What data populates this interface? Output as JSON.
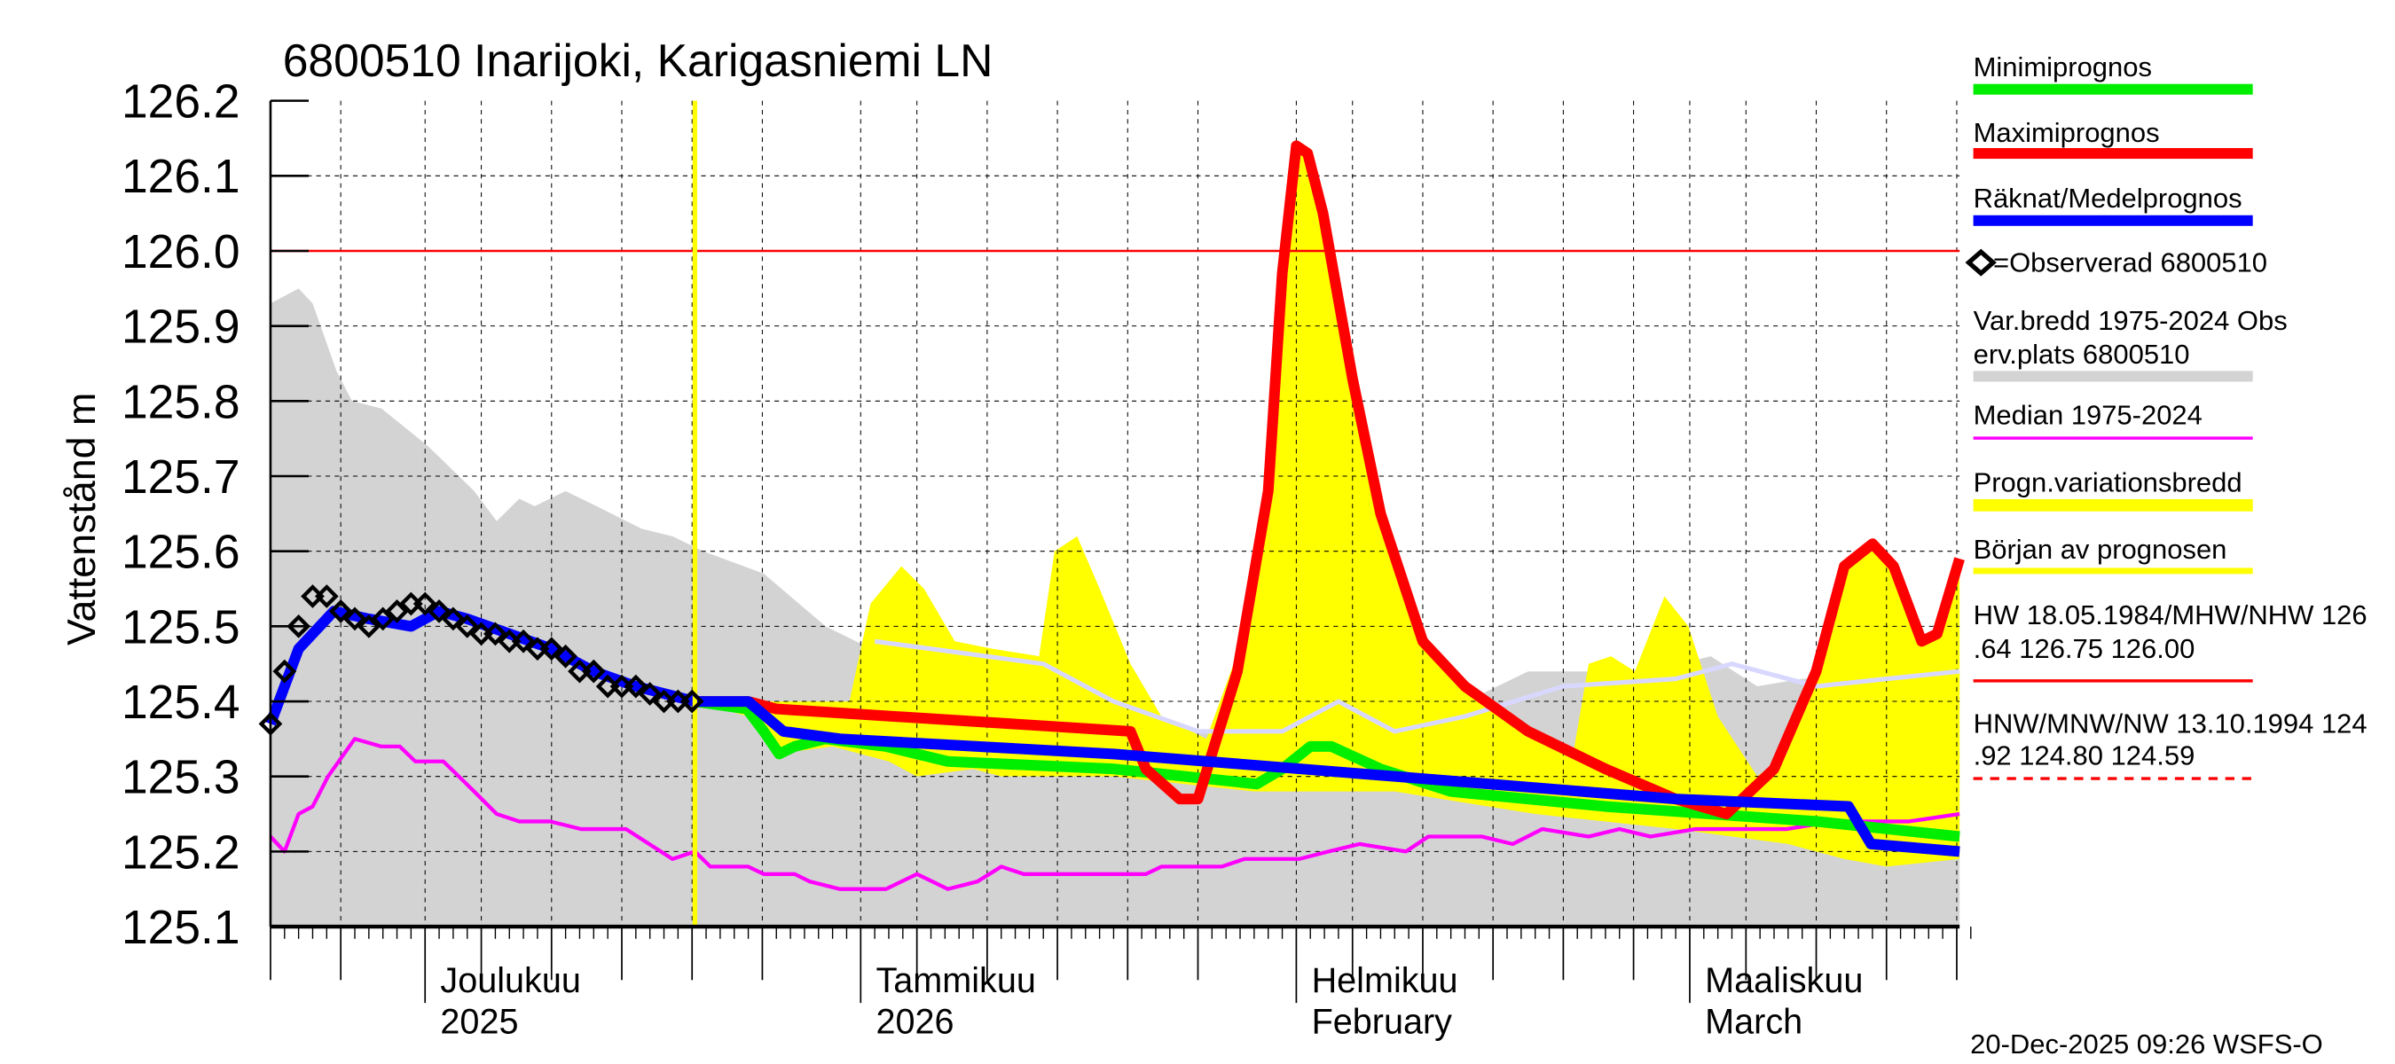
{
  "title": "6800510 Inarijoki, Karigasniemi LN",
  "footer": "20-Dec-2025 09:26 WSFS-O",
  "chart_data": {
    "type": "line",
    "title": "6800510 Inarijoki, Karigasniemi LN",
    "ylabel": "Vattenstånd m",
    "xlabel": "",
    "x_units": "days since 2025-11-20",
    "x_range": [
      0,
      120.2
    ],
    "ylim": [
      125.1,
      126.2
    ],
    "yticks": [
      "125.1",
      "125.2",
      "125.3",
      "125.4",
      "125.5",
      "125.6",
      "125.7",
      "125.8",
      "125.9",
      "126.0",
      "126.1",
      "126.2"
    ],
    "month_labels": [
      {
        "day": 11,
        "line1": "Joulukuu",
        "line2": "2025"
      },
      {
        "day": 42,
        "line1": "Tammikuu",
        "line2": "2026"
      },
      {
        "day": 73,
        "line1": "Helmikuu",
        "line2": "February"
      },
      {
        "day": 101,
        "line1": "Maaliskuu",
        "line2": "March"
      }
    ],
    "forecast_start_day": 30.2,
    "hw_reference_level": 126.0,
    "grid": true,
    "legend_position": "right",
    "var_band": {
      "name": "Var.bredd 1975-2024   Observ.plats 6800510",
      "color": "#d3d3d3",
      "upper": [
        [
          0,
          125.93
        ],
        [
          2,
          125.95
        ],
        [
          3,
          125.93
        ],
        [
          4.7,
          125.84
        ],
        [
          5.8,
          125.8
        ],
        [
          7.9,
          125.79
        ],
        [
          11.2,
          125.74
        ],
        [
          14.5,
          125.68
        ],
        [
          16.1,
          125.64
        ],
        [
          17.7,
          125.67
        ],
        [
          18.8,
          125.66
        ],
        [
          21,
          125.68
        ],
        [
          23.2,
          125.66
        ],
        [
          26.4,
          125.63
        ],
        [
          28.6,
          125.62
        ],
        [
          30.8,
          125.6
        ],
        [
          35.1,
          125.57
        ],
        [
          39.5,
          125.5
        ],
        [
          43.8,
          125.46
        ],
        [
          48.2,
          125.44
        ],
        [
          56.8,
          125.4
        ],
        [
          63.4,
          125.37
        ],
        [
          73.2,
          125.34
        ],
        [
          78.6,
          125.36
        ],
        [
          85.1,
          125.4
        ],
        [
          89.5,
          125.44
        ],
        [
          98.2,
          125.44
        ],
        [
          102.5,
          125.46
        ],
        [
          105.8,
          125.42
        ],
        [
          109,
          125.43
        ],
        [
          114.5,
          125.44
        ],
        [
          120.2,
          125.44
        ]
      ],
      "lower": 125.1
    },
    "forecast_band": {
      "name": "Progn.variationsbredd",
      "color": "#ffff00",
      "upper": [
        [
          30.2,
          125.4
        ],
        [
          41.2,
          125.4
        ],
        [
          42.7,
          125.53
        ],
        [
          44.9,
          125.58
        ],
        [
          46.5,
          125.55
        ],
        [
          48.7,
          125.48
        ],
        [
          51.4,
          125.47
        ],
        [
          54.7,
          125.46
        ],
        [
          55.8,
          125.6
        ],
        [
          57.4,
          125.62
        ],
        [
          59,
          125.55
        ],
        [
          61.2,
          125.45
        ],
        [
          63.4,
          125.38
        ],
        [
          66.6,
          125.35
        ],
        [
          69.9,
          125.52
        ],
        [
          71.5,
          125.85
        ],
        [
          73,
          126.14
        ],
        [
          73.8,
          126.13
        ],
        [
          74.9,
          126.05
        ],
        [
          77,
          125.83
        ],
        [
          79,
          125.65
        ],
        [
          82,
          125.48
        ],
        [
          85,
          125.42
        ],
        [
          89.5,
          125.36
        ],
        [
          92.7,
          125.33
        ],
        [
          93.8,
          125.45
        ],
        [
          95.4,
          125.46
        ],
        [
          97.1,
          125.44
        ],
        [
          99.2,
          125.54
        ],
        [
          100.9,
          125.5
        ],
        [
          103,
          125.38
        ],
        [
          105.8,
          125.3
        ],
        [
          107.9,
          125.33
        ],
        [
          110,
          125.44
        ],
        [
          112,
          125.58
        ],
        [
          114,
          125.61
        ],
        [
          115.5,
          125.58
        ],
        [
          117.5,
          125.48
        ],
        [
          118.6,
          125.49
        ],
        [
          120.2,
          125.59
        ]
      ],
      "lower": [
        [
          30.2,
          125.4
        ],
        [
          34,
          125.38
        ],
        [
          36,
          125.33
        ],
        [
          40,
          125.34
        ],
        [
          44,
          125.32
        ],
        [
          46,
          125.3
        ],
        [
          50,
          125.31
        ],
        [
          52,
          125.3
        ],
        [
          60,
          125.3
        ],
        [
          70,
          125.28
        ],
        [
          80,
          125.28
        ],
        [
          90,
          125.25
        ],
        [
          100,
          125.23
        ],
        [
          108,
          125.21
        ],
        [
          112,
          125.19
        ],
        [
          115,
          125.18
        ],
        [
          120.2,
          125.19
        ]
      ]
    },
    "series": [
      {
        "name": "Median 1975-2024",
        "color": "#ff00ff",
        "width": 2.5,
        "points": [
          [
            0,
            125.22
          ],
          [
            1,
            125.2
          ],
          [
            2,
            125.25
          ],
          [
            3,
            125.26
          ],
          [
            4.1,
            125.3
          ],
          [
            6,
            125.35
          ],
          [
            7.9,
            125.34
          ],
          [
            9.2,
            125.34
          ],
          [
            10.3,
            125.32
          ],
          [
            12.3,
            125.32
          ],
          [
            13.4,
            125.3
          ],
          [
            14.5,
            125.28
          ],
          [
            16.1,
            125.25
          ],
          [
            17.7,
            125.24
          ],
          [
            19.9,
            125.24
          ],
          [
            22.1,
            125.23
          ],
          [
            25.3,
            125.23
          ],
          [
            28.6,
            125.19
          ],
          [
            30.2,
            125.2
          ],
          [
            31.3,
            125.18
          ],
          [
            34,
            125.18
          ],
          [
            35.1,
            125.17
          ],
          [
            37.3,
            125.17
          ],
          [
            38.4,
            125.16
          ],
          [
            40.5,
            125.15
          ],
          [
            43.8,
            125.15
          ],
          [
            46,
            125.17
          ],
          [
            48.2,
            125.15
          ],
          [
            50.3,
            125.16
          ],
          [
            52,
            125.18
          ],
          [
            53.6,
            125.17
          ],
          [
            56.8,
            125.17
          ],
          [
            62.3,
            125.17
          ],
          [
            63.4,
            125.18
          ],
          [
            67.7,
            125.18
          ],
          [
            69.3,
            125.19
          ],
          [
            73.2,
            125.19
          ],
          [
            75.3,
            125.2
          ],
          [
            77.5,
            125.21
          ],
          [
            80.8,
            125.2
          ],
          [
            82.4,
            125.22
          ],
          [
            86.2,
            125.22
          ],
          [
            88.4,
            125.21
          ],
          [
            90.5,
            125.23
          ],
          [
            93.8,
            125.22
          ],
          [
            96,
            125.23
          ],
          [
            98.2,
            125.22
          ],
          [
            101.4,
            125.23
          ],
          [
            104.7,
            125.23
          ],
          [
            107.9,
            125.23
          ],
          [
            111.2,
            125.24
          ],
          [
            116.6,
            125.24
          ],
          [
            120.2,
            125.25
          ]
        ]
      },
      {
        "name": "",
        "color": "#d8d8ff",
        "width": 3,
        "points": [
          [
            43,
            125.48
          ],
          [
            55,
            125.45
          ],
          [
            60,
            125.4
          ],
          [
            66,
            125.36
          ],
          [
            72,
            125.36
          ],
          [
            76,
            125.4
          ],
          [
            80,
            125.36
          ],
          [
            85,
            125.38
          ],
          [
            92,
            125.42
          ],
          [
            100,
            125.43
          ],
          [
            104,
            125.45
          ],
          [
            110,
            125.42
          ],
          [
            115,
            125.43
          ],
          [
            120.2,
            125.44
          ]
        ]
      },
      {
        "name": "Minimiprognos",
        "color": "#00ee00",
        "width": 7,
        "points": [
          [
            30.2,
            125.4
          ],
          [
            33.9,
            125.39
          ],
          [
            35.1,
            125.36
          ],
          [
            36.2,
            125.33
          ],
          [
            37.3,
            125.34
          ],
          [
            39.5,
            125.35
          ],
          [
            43.8,
            125.34
          ],
          [
            48.2,
            125.32
          ],
          [
            60,
            125.31
          ],
          [
            70.2,
            125.29
          ],
          [
            72,
            125.31
          ],
          [
            74,
            125.34
          ],
          [
            75.5,
            125.34
          ],
          [
            79,
            125.31
          ],
          [
            84,
            125.28
          ],
          [
            95,
            125.26
          ],
          [
            110,
            125.24
          ],
          [
            120.2,
            125.22
          ]
        ]
      },
      {
        "name": "Maximiprognos",
        "color": "#ff0000",
        "width": 7,
        "points": [
          [
            30.2,
            125.4
          ],
          [
            34,
            125.4
          ],
          [
            36,
            125.39
          ],
          [
            61.2,
            125.36
          ],
          [
            62.3,
            125.31
          ],
          [
            64.7,
            125.27
          ],
          [
            66,
            125.27
          ],
          [
            68.8,
            125.44
          ],
          [
            71,
            125.68
          ],
          [
            72,
            125.97
          ],
          [
            73,
            126.14
          ],
          [
            73.8,
            126.13
          ],
          [
            74.9,
            126.05
          ],
          [
            77,
            125.83
          ],
          [
            79,
            125.65
          ],
          [
            82,
            125.48
          ],
          [
            85,
            125.42
          ],
          [
            89.5,
            125.36
          ],
          [
            95,
            125.31
          ],
          [
            100,
            125.27
          ],
          [
            103.6,
            125.25
          ],
          [
            107,
            125.31
          ],
          [
            110,
            125.44
          ],
          [
            112,
            125.58
          ],
          [
            114,
            125.61
          ],
          [
            115.5,
            125.58
          ],
          [
            117.5,
            125.48
          ],
          [
            118.6,
            125.49
          ],
          [
            120.2,
            125.59
          ]
        ]
      },
      {
        "name": "Räknat/Medelprognos",
        "color": "#0000ff",
        "width": 7,
        "points": [
          [
            0,
            125.37
          ],
          [
            2,
            125.47
          ],
          [
            4.5,
            125.52
          ],
          [
            7,
            125.51
          ],
          [
            10,
            125.5
          ],
          [
            12,
            125.52
          ],
          [
            14,
            125.51
          ],
          [
            17,
            125.49
          ],
          [
            20,
            125.47
          ],
          [
            23,
            125.44
          ],
          [
            26,
            125.42
          ],
          [
            30.2,
            125.4
          ],
          [
            34,
            125.4
          ],
          [
            36.5,
            125.36
          ],
          [
            40.5,
            125.35
          ],
          [
            60,
            125.33
          ],
          [
            80,
            125.3
          ],
          [
            100,
            125.27
          ],
          [
            112.3,
            125.26
          ],
          [
            113.9,
            125.21
          ],
          [
            120.2,
            125.2
          ]
        ]
      }
    ],
    "observed": {
      "name": "=Observerad 6800510",
      "points": [
        [
          0,
          125.37
        ],
        [
          1,
          125.44
        ],
        [
          2,
          125.5
        ],
        [
          3,
          125.54
        ],
        [
          4,
          125.54
        ],
        [
          5,
          125.52
        ],
        [
          6,
          125.51
        ],
        [
          7,
          125.5
        ],
        [
          8,
          125.51
        ],
        [
          9,
          125.52
        ],
        [
          10,
          125.53
        ],
        [
          11,
          125.53
        ],
        [
          12,
          125.52
        ],
        [
          13,
          125.51
        ],
        [
          14,
          125.5
        ],
        [
          15,
          125.49
        ],
        [
          16,
          125.49
        ],
        [
          17,
          125.48
        ],
        [
          18,
          125.48
        ],
        [
          19,
          125.47
        ],
        [
          20,
          125.47
        ],
        [
          21,
          125.46
        ],
        [
          22,
          125.44
        ],
        [
          23,
          125.44
        ],
        [
          24,
          125.42
        ],
        [
          25,
          125.42
        ],
        [
          26,
          125.42
        ],
        [
          27,
          125.41
        ],
        [
          28,
          125.4
        ],
        [
          29,
          125.4
        ],
        [
          30,
          125.4
        ]
      ]
    }
  },
  "legend": {
    "min": "Minimiprognos",
    "max": "Maximiprognos",
    "mean": "Räknat/Medelprognos",
    "obs": "=Observerad 6800510",
    "var1": "Var.bredd 1975-2024   Obs",
    "var2": "erv.plats 6800510",
    "median": "Median 1975-2024",
    "progn": "Progn.variationsbredd",
    "start": "Början av prognosen",
    "hw1": "HW 18.05.1984/MHW/NHW 126",
    "hw2": ".64 126.75 126.00",
    "nw1": "HNW/MNW/NW 13.10.1994 124",
    "nw2": ".92 124.80 124.59"
  }
}
